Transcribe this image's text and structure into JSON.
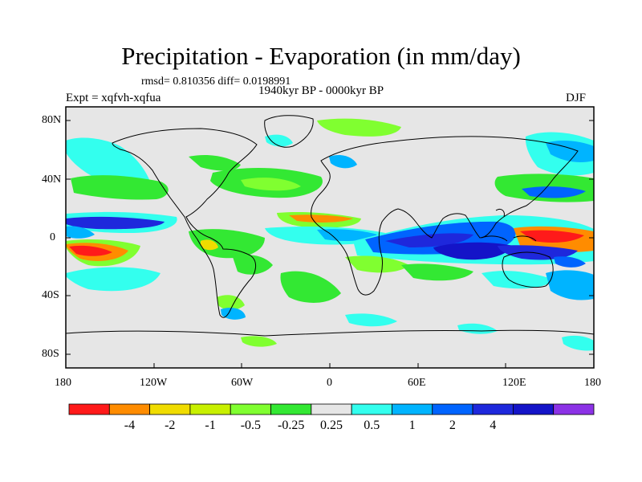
{
  "title": "Precipitation - Evaporation (in mm/day)",
  "stats": "rmsd= 0.810356 diff= 0.0198991",
  "experiment": "Expt = xqfvh-xqfua",
  "period": "1940kyr BP - 0000kyr BP",
  "season": "DJF",
  "lat_labels": [
    "80N",
    "40N",
    "0",
    "40S",
    "80S"
  ],
  "lon_labels": [
    "180",
    "120W",
    "60W",
    "0",
    "60E",
    "120E",
    "180"
  ],
  "colorbar": {
    "colors": [
      "#ff1a1a",
      "#ff8c00",
      "#f0dc00",
      "#c8f000",
      "#80ff30",
      "#33e833",
      "#e6e6e6",
      "#33ffee",
      "#00b4ff",
      "#0064ff",
      "#1e28dc",
      "#1414c8",
      "#8c32e6"
    ],
    "labels": [
      "-4",
      "-2",
      "-1",
      "-0.5",
      "-0.25",
      "0.25",
      "0.5",
      "1",
      "2",
      "4"
    ]
  },
  "map": {
    "ocean_color": "#e6e6e6",
    "coast_color": "#000000"
  }
}
